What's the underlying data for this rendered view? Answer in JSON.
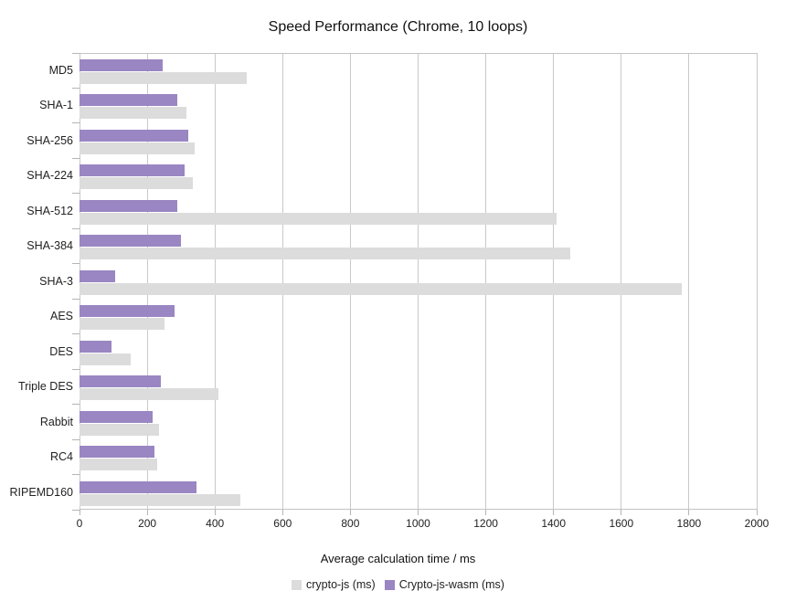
{
  "chart_data": {
    "type": "bar",
    "orientation": "horizontal",
    "title": "Speed Performance (Chrome, 10 loops)",
    "xlabel": "Average calculation time / ms",
    "categories": [
      "MD5",
      "SHA-1",
      "SHA-256",
      "SHA-224",
      "SHA-512",
      "SHA-384",
      "SHA-3",
      "AES",
      "DES",
      "Triple DES",
      "Rabbit",
      "RC4",
      "RIPEMD160"
    ],
    "series": [
      {
        "name": "crypto-js (ms)",
        "color": "#dcdcdc",
        "values": [
          495,
          315,
          340,
          335,
          1410,
          1450,
          1780,
          250,
          150,
          410,
          235,
          230,
          475
        ]
      },
      {
        "name": "Crypto-js-wasm (ms)",
        "color": "#9a86c2",
        "values": [
          245,
          290,
          320,
          310,
          290,
          300,
          105,
          280,
          95,
          240,
          215,
          220,
          345
        ]
      }
    ],
    "xlim": [
      0,
      2000
    ],
    "xticks": [
      0,
      200,
      400,
      600,
      800,
      1000,
      1200,
      1400,
      1600,
      1800,
      2000
    ],
    "grid": true,
    "legend_position": "bottom",
    "bar_order_top_to_bottom": [
      "Crypto-js-wasm (ms)",
      "crypto-js (ms)"
    ]
  }
}
